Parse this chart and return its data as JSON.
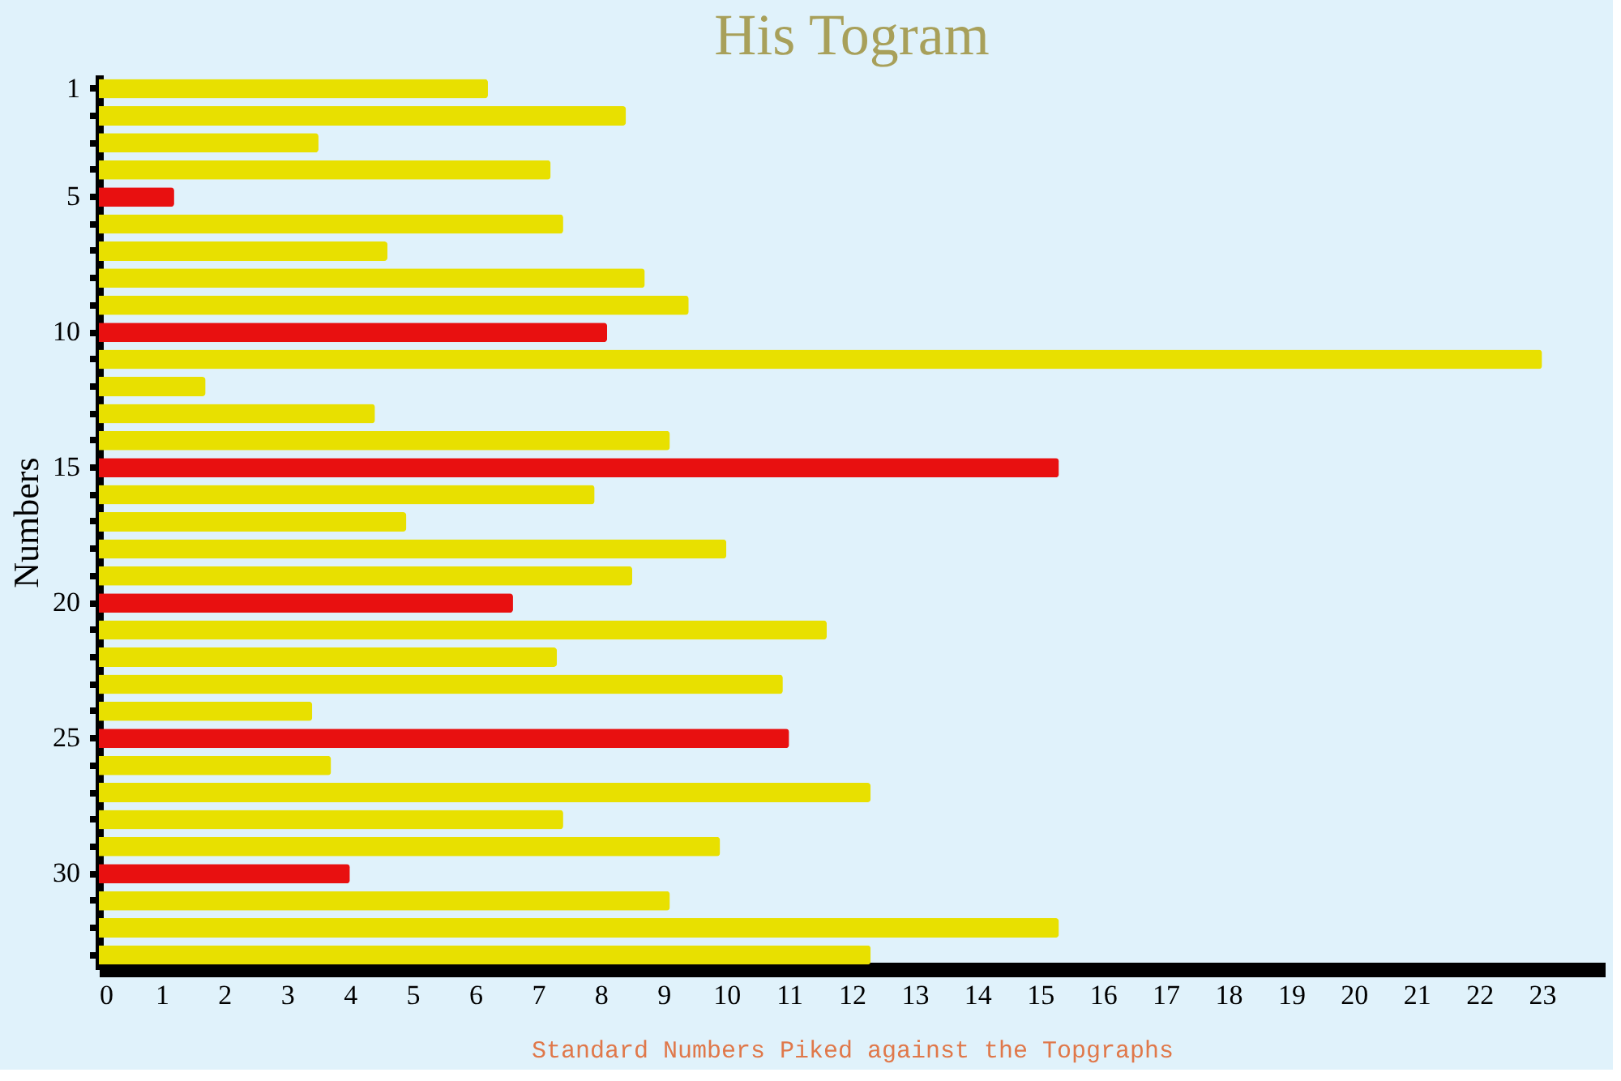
{
  "chart_data": {
    "type": "bar",
    "orientation": "horizontal",
    "title": "His Togram",
    "xlabel": "Standard Numbers Piked against the Topgraphs",
    "ylabel": "Numbers",
    "categories": [
      "1",
      null,
      null,
      null,
      "5",
      null,
      null,
      null,
      null,
      "10",
      null,
      null,
      null,
      null,
      "15",
      null,
      null,
      null,
      null,
      "20",
      null,
      null,
      null,
      null,
      "25",
      null,
      null,
      null,
      null,
      "30",
      null,
      null,
      null
    ],
    "values": [
      6.2,
      8.4,
      3.5,
      7.2,
      1.2,
      7.4,
      4.6,
      8.7,
      9.4,
      8.1,
      23,
      1.7,
      4.4,
      9.1,
      15.3,
      7.9,
      4.9,
      10.0,
      8.5,
      6.6,
      11.6,
      7.3,
      10.9,
      3.4,
      11.0,
      3.7,
      12.3,
      7.4,
      9.9,
      4.0,
      9.1,
      15.3,
      12.3
    ],
    "colors": [
      "#e8e000",
      "#e8e000",
      "#e8e000",
      "#e8e000",
      "#e81010",
      "#e8e000",
      "#e8e000",
      "#e8e000",
      "#e8e000",
      "#e81010",
      "#e8e000",
      "#e8e000",
      "#e8e000",
      "#e8e000",
      "#e81010",
      "#e8e000",
      "#e8e000",
      "#e8e000",
      "#e8e000",
      "#e81010",
      "#e8e000",
      "#e8e000",
      "#e8e000",
      "#e8e000",
      "#e81010",
      "#e8e000",
      "#e8e000",
      "#e8e000",
      "#e8e000",
      "#e81010",
      "#e8e000",
      "#e8e000",
      "#e8e000"
    ],
    "xlim": [
      0,
      24
    ],
    "xticks": [
      0,
      1,
      2,
      3,
      4,
      5,
      6,
      7,
      8,
      9,
      10,
      11,
      12,
      13,
      14,
      15,
      16,
      17,
      18,
      19,
      20,
      21,
      22,
      23
    ],
    "grid": false
  }
}
